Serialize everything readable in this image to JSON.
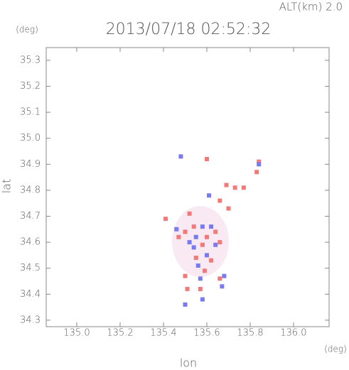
{
  "chart_data": {
    "type": "scatter",
    "title": "2013/07/18 02:52:32",
    "subtitle": "ALT(km) 2.0",
    "y_unit": "(deg)",
    "x_unit": "(deg)",
    "xlabel": "lon",
    "ylabel": "lat",
    "xlim": [
      134.859,
      136.164
    ],
    "ylim": [
      34.275,
      35.349
    ],
    "xticks": [
      {
        "value": 135.0,
        "label": "135.0"
      },
      135.2,
      135.4,
      135.6,
      135.8,
      {
        "value": 136.0,
        "label": "136.0"
      }
    ],
    "yticks": [
      35.3,
      35.2,
      35.1,
      {
        "value": 35.0,
        "label": "35.0"
      },
      34.9,
      34.8,
      34.7,
      34.6,
      34.5,
      34.4,
      34.3
    ],
    "series": [
      {
        "color": "#f07a7a",
        "x": [
          135.84,
          135.83,
          135.77,
          135.73,
          135.6,
          135.69,
          135.66,
          135.41,
          135.52,
          135.5,
          135.58,
          135.6,
          135.64,
          135.66,
          135.55,
          135.62,
          135.5,
          135.59,
          135.51,
          135.57,
          135.66,
          135.47,
          135.54,
          135.7
        ],
        "y": [
          34.91,
          34.87,
          34.81,
          34.81,
          34.92,
          34.82,
          34.76,
          34.69,
          34.71,
          34.64,
          34.59,
          34.62,
          34.64,
          34.6,
          34.54,
          34.53,
          34.47,
          34.49,
          34.42,
          34.42,
          34.46,
          34.62,
          34.66,
          34.73
        ]
      },
      {
        "color": "#7a7af0",
        "x": [
          135.48,
          135.84,
          135.61,
          135.55,
          135.58,
          135.62,
          135.52,
          135.64,
          135.6,
          135.56,
          135.68,
          135.57,
          135.58,
          135.5,
          135.46,
          135.67,
          135.54
        ],
        "y": [
          34.93,
          34.9,
          34.78,
          34.62,
          34.66,
          34.66,
          34.6,
          34.59,
          34.55,
          34.51,
          34.47,
          34.46,
          34.38,
          34.36,
          34.65,
          34.43,
          34.58
        ]
      }
    ]
  }
}
